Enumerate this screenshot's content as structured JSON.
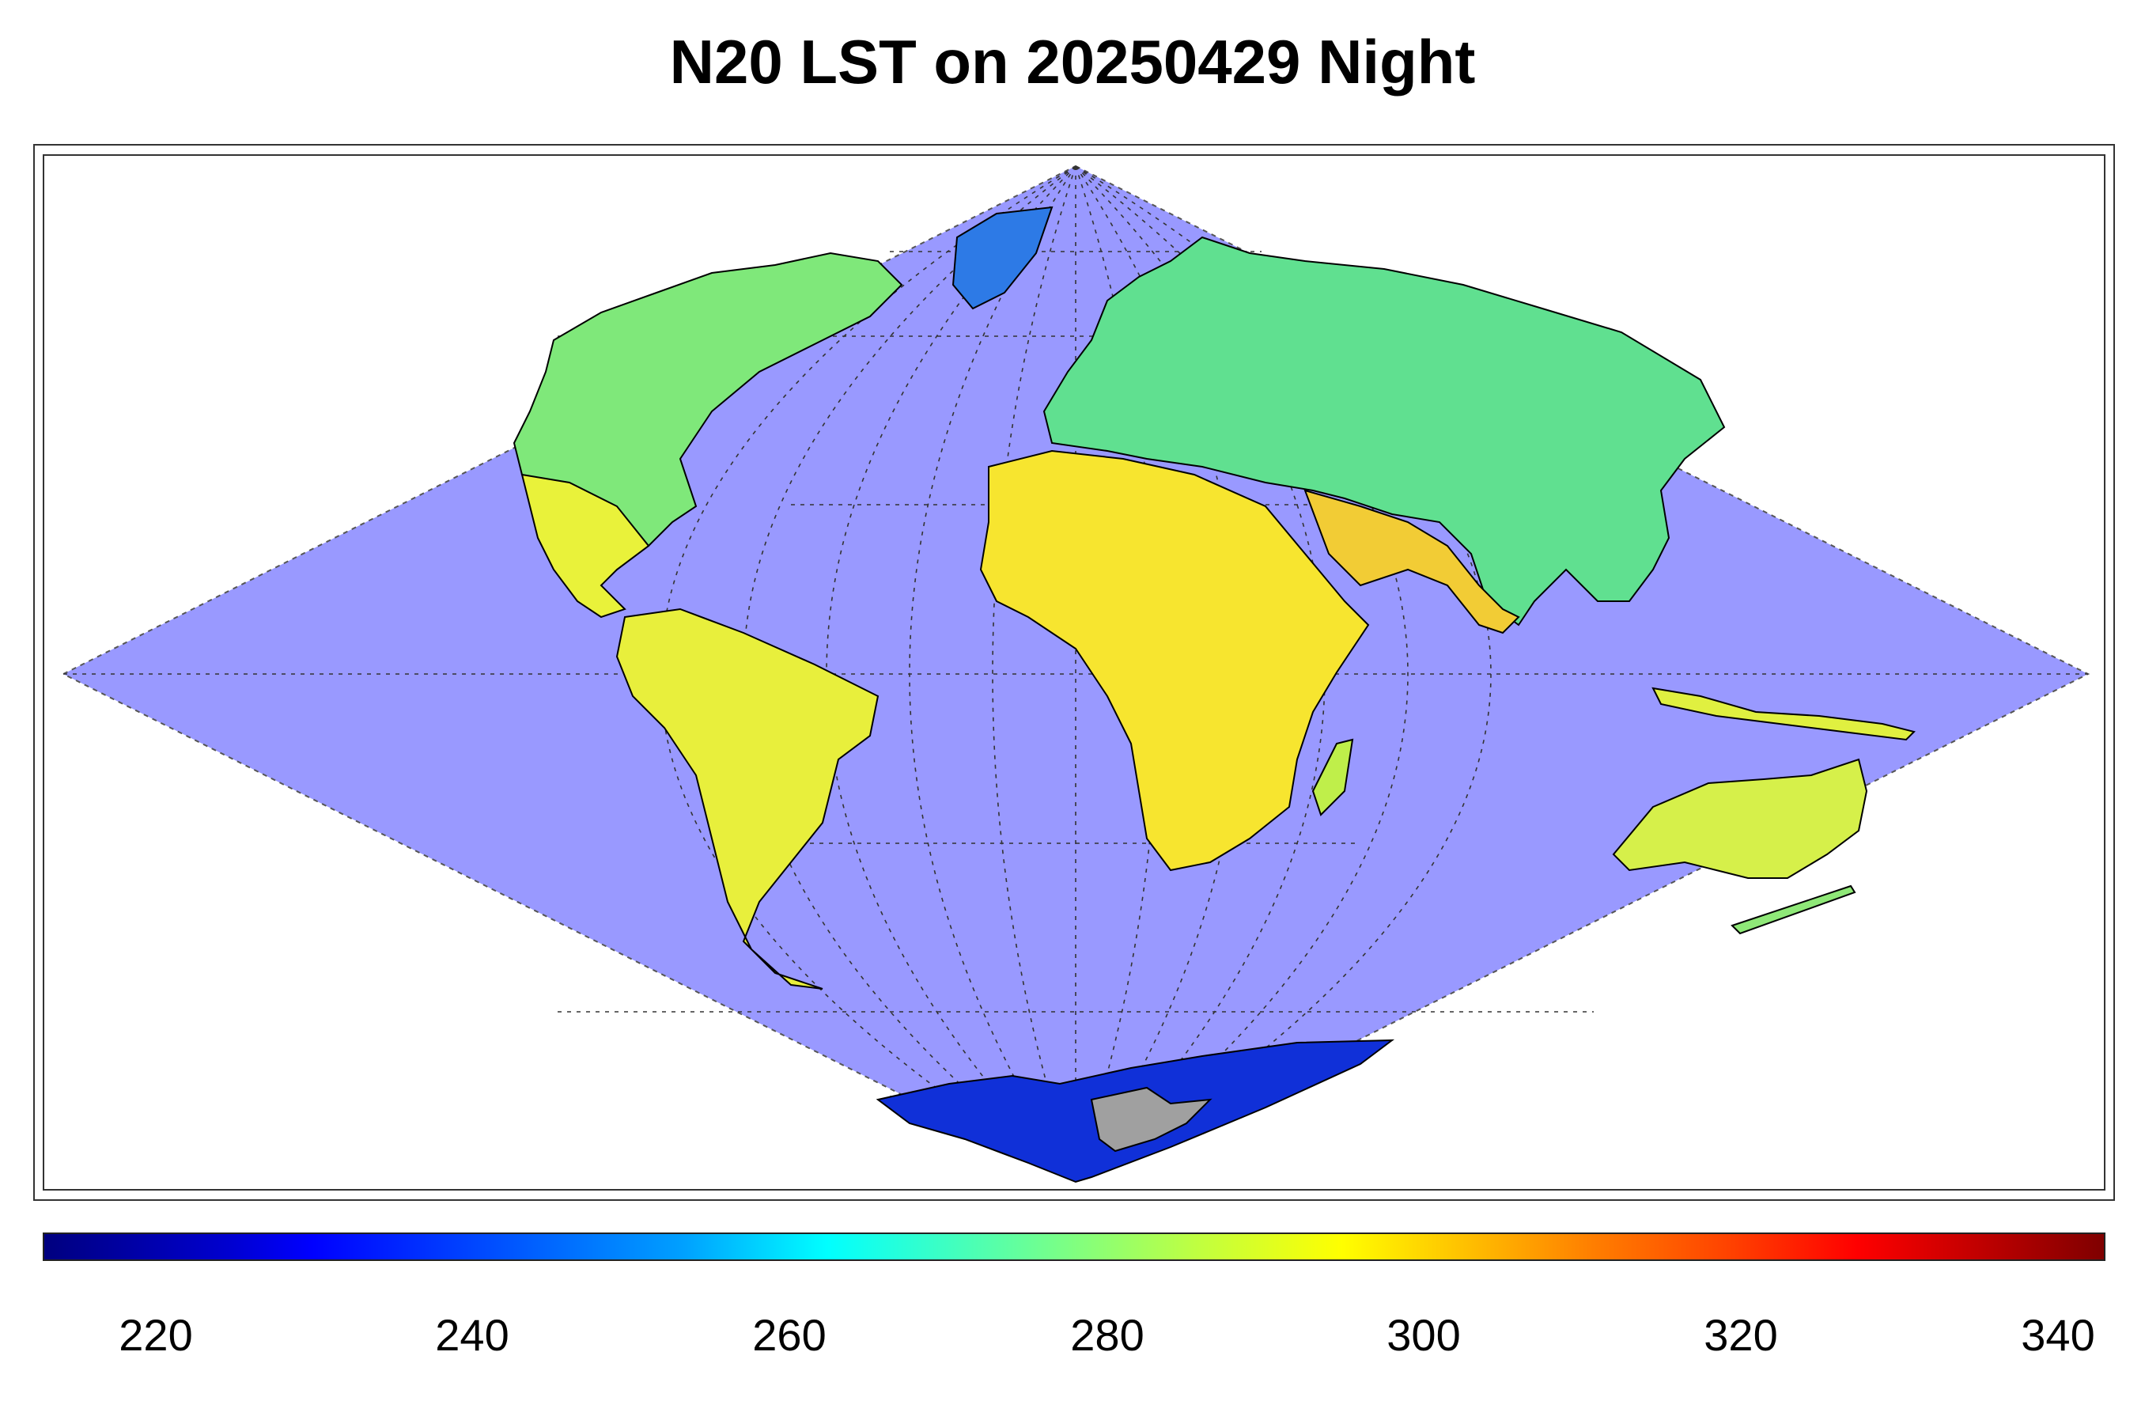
{
  "title": "N20 LST on 20250429 Night",
  "colorbar": {
    "ticks": [
      "220",
      "240",
      "260",
      "280",
      "300",
      "320",
      "340"
    ],
    "range": [
      213,
      343
    ],
    "colormap": "jet"
  },
  "colors": {
    "ocean": "#9999ff",
    "no_data_land": "#a0a0a0",
    "coastline": "#000000",
    "graticule": "#333333"
  },
  "map": {
    "projection": "sinusoidal",
    "graticule": true
  }
}
